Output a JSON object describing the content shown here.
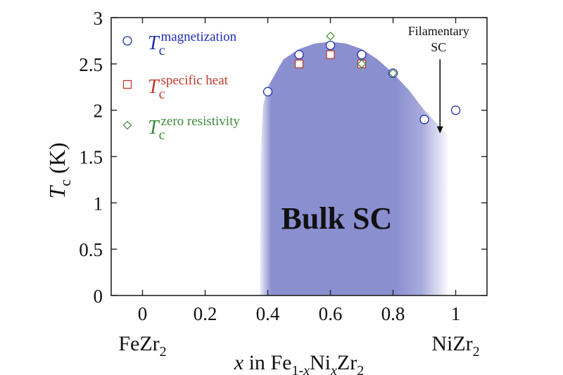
{
  "chart_data": {
    "type": "scatter",
    "xlabel": {
      "var": "x",
      "mid": " in Fe",
      "sub1": "1-",
      "sub1_var": "x",
      "mid2": "Ni",
      "sub2_var": "x",
      "end": "Zr",
      "sub3": "2"
    },
    "ylabel": {
      "main": "T",
      "sub": "c",
      "unit": " (K)"
    },
    "xlim": [
      -0.1,
      1.1
    ],
    "ylim": [
      0,
      3
    ],
    "xticks": [
      "0",
      "0.2",
      "0.4",
      "0.6",
      "0.8",
      "1"
    ],
    "yticks": [
      "0",
      "0.5",
      "1",
      "1.5",
      "2",
      "2.5",
      "3"
    ],
    "end_labels": {
      "left": {
        "main": "FeZr",
        "sub": "2"
      },
      "right": {
        "main": "NiZr",
        "sub": "2"
      }
    },
    "series": [
      {
        "name": "magnetization",
        "marker": "circle",
        "color": "#1f2fb0",
        "points": [
          [
            0.4,
            2.2
          ],
          [
            0.5,
            2.6
          ],
          [
            0.6,
            2.7
          ],
          [
            0.7,
            2.6
          ],
          [
            0.8,
            2.4
          ],
          [
            0.9,
            1.9
          ],
          [
            1.0,
            2.0
          ]
        ]
      },
      {
        "name": "specific heat",
        "marker": "square",
        "color": "#c0392b",
        "points": [
          [
            0.5,
            2.5
          ],
          [
            0.6,
            2.6
          ],
          [
            0.7,
            2.5
          ]
        ]
      },
      {
        "name": "zero resistivity",
        "marker": "diamond",
        "color": "#3a8a3a",
        "points": [
          [
            0.6,
            2.8
          ],
          [
            0.7,
            2.5
          ],
          [
            0.8,
            2.4
          ]
        ]
      }
    ],
    "legend": {
      "placement": "top-left",
      "symbol": "T",
      "subscript": "c"
    },
    "region": {
      "label": "Bulk SC",
      "color": "#8a8fd0",
      "boundary": [
        [
          0.375,
          0
        ],
        [
          0.377,
          1.5
        ],
        [
          0.385,
          2.05
        ],
        [
          0.4,
          2.25
        ],
        [
          0.45,
          2.55
        ],
        [
          0.5,
          2.66
        ],
        [
          0.55,
          2.72
        ],
        [
          0.6,
          2.74
        ],
        [
          0.65,
          2.72
        ],
        [
          0.7,
          2.66
        ],
        [
          0.75,
          2.55
        ],
        [
          0.8,
          2.4
        ],
        [
          0.85,
          2.22
        ],
        [
          0.9,
          2.0
        ],
        [
          0.95,
          1.82
        ],
        [
          0.975,
          1.72
        ],
        [
          0.975,
          0
        ]
      ]
    },
    "annotation": {
      "lines": [
        "Filamentary",
        "SC"
      ],
      "arrow_x": 0.95,
      "arrow_from_y": 2.55,
      "arrow_to_y": 1.75
    },
    "grid": false
  }
}
